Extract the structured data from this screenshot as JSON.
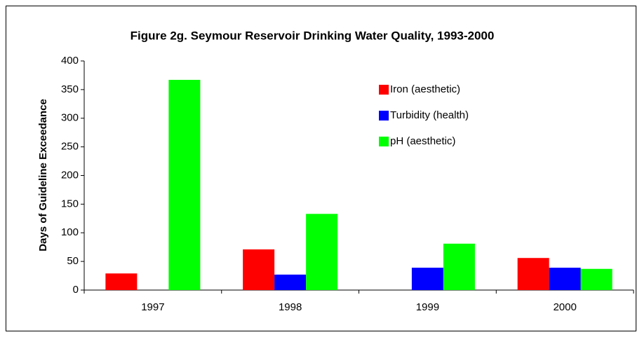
{
  "chart_data": {
    "type": "bar",
    "title": "Figure 2g. Seymour Reservoir Drinking Water Quality, 1993-2000",
    "ylabel": "Days of Guideline Exceedance",
    "categories": [
      "1997",
      "1998",
      "1999",
      "2000"
    ],
    "series": [
      {
        "name": "Iron (aesthetic)",
        "color": "#ff0000",
        "values": [
          29,
          71,
          0,
          56
        ]
      },
      {
        "name": "Turbidity (health)",
        "color": "#0000ff",
        "values": [
          0,
          27,
          39,
          39
        ]
      },
      {
        "name": "pH (aesthetic)",
        "color": "#00ff00",
        "values": [
          367,
          133,
          81,
          37
        ]
      }
    ],
    "ylim": [
      0,
      400
    ],
    "yticks": [
      0,
      50,
      100,
      150,
      200,
      250,
      300,
      350,
      400
    ],
    "legend": "upper right"
  }
}
